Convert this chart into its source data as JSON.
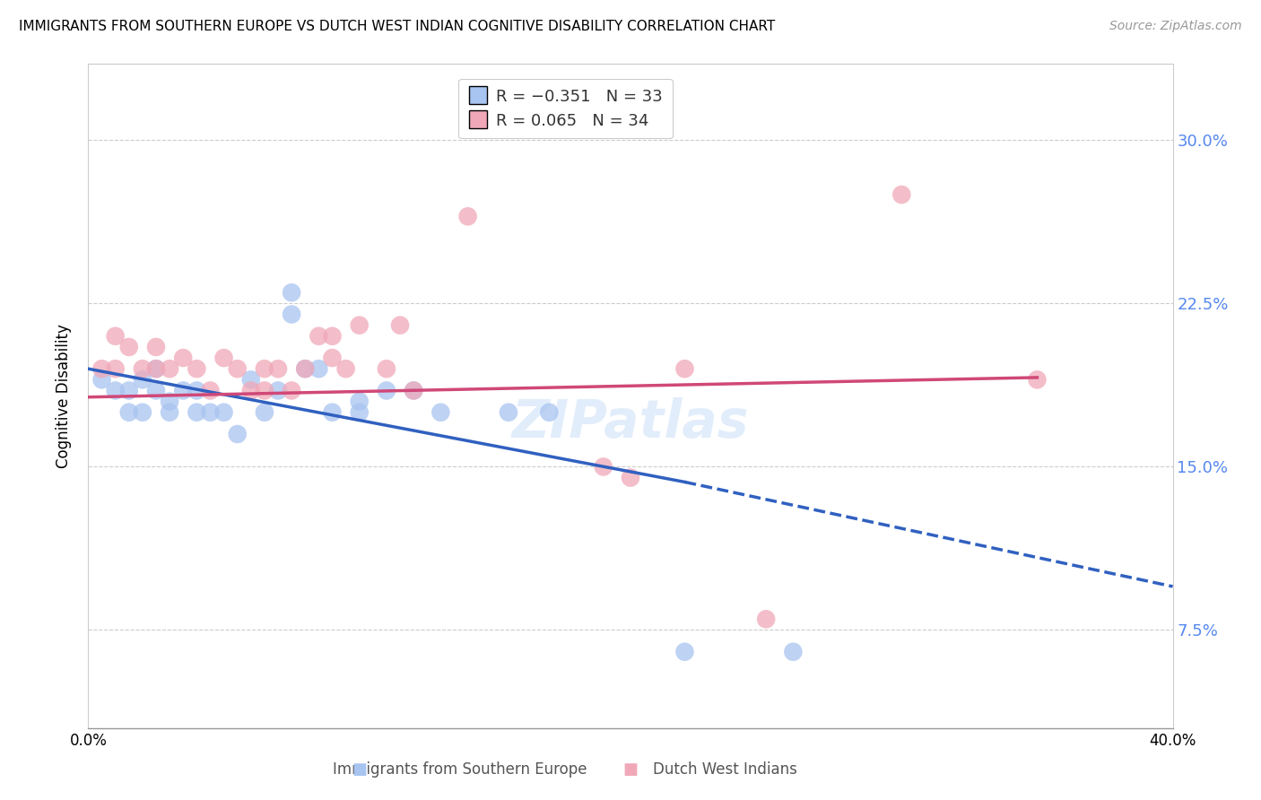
{
  "title": "IMMIGRANTS FROM SOUTHERN EUROPE VS DUTCH WEST INDIAN COGNITIVE DISABILITY CORRELATION CHART",
  "source": "Source: ZipAtlas.com",
  "ylabel": "Cognitive Disability",
  "y_tick_labels": [
    "7.5%",
    "15.0%",
    "22.5%",
    "30.0%"
  ],
  "y_tick_values": [
    0.075,
    0.15,
    0.225,
    0.3
  ],
  "x_lim": [
    0.0,
    0.4
  ],
  "y_lim": [
    0.03,
    0.335
  ],
  "blue_color": "#a8c4f0",
  "pink_color": "#f0a8b8",
  "blue_line_color": "#3060c0",
  "pink_line_color": "#d04878",
  "grid_color": "#cccccc",
  "axis_color": "#cccccc",
  "right_label_color": "#5588ee",
  "blue_scatter_x": [
    0.005,
    0.01,
    0.015,
    0.015,
    0.02,
    0.02,
    0.025,
    0.025,
    0.03,
    0.03,
    0.035,
    0.04,
    0.04,
    0.045,
    0.05,
    0.055,
    0.06,
    0.065,
    0.07,
    0.075,
    0.075,
    0.08,
    0.085,
    0.09,
    0.1,
    0.1,
    0.11,
    0.12,
    0.13,
    0.155,
    0.17,
    0.22,
    0.26
  ],
  "blue_scatter_y": [
    0.19,
    0.185,
    0.185,
    0.175,
    0.175,
    0.19,
    0.195,
    0.185,
    0.18,
    0.175,
    0.185,
    0.175,
    0.185,
    0.175,
    0.175,
    0.165,
    0.19,
    0.175,
    0.185,
    0.23,
    0.22,
    0.195,
    0.195,
    0.175,
    0.18,
    0.175,
    0.185,
    0.185,
    0.175,
    0.175,
    0.175,
    0.065,
    0.065
  ],
  "pink_scatter_x": [
    0.005,
    0.01,
    0.01,
    0.015,
    0.02,
    0.025,
    0.025,
    0.03,
    0.035,
    0.04,
    0.045,
    0.05,
    0.055,
    0.06,
    0.065,
    0.065,
    0.07,
    0.075,
    0.08,
    0.085,
    0.09,
    0.09,
    0.095,
    0.1,
    0.11,
    0.115,
    0.12,
    0.14,
    0.19,
    0.2,
    0.22,
    0.25,
    0.3,
    0.35
  ],
  "pink_scatter_y": [
    0.195,
    0.21,
    0.195,
    0.205,
    0.195,
    0.205,
    0.195,
    0.195,
    0.2,
    0.195,
    0.185,
    0.2,
    0.195,
    0.185,
    0.195,
    0.185,
    0.195,
    0.185,
    0.195,
    0.21,
    0.2,
    0.21,
    0.195,
    0.215,
    0.195,
    0.215,
    0.185,
    0.265,
    0.15,
    0.145,
    0.195,
    0.08,
    0.275,
    0.19
  ],
  "blue_line_x_start": 0.0,
  "blue_line_x_solid_end": 0.22,
  "blue_line_x_end": 0.4,
  "blue_line_y_start": 0.195,
  "blue_line_y_solid_end": 0.143,
  "blue_line_y_end": 0.095,
  "pink_line_x_start": 0.0,
  "pink_line_x_end": 0.35,
  "pink_line_y_start": 0.182,
  "pink_line_y_end": 0.191,
  "watermark": "ZIPatlas",
  "figsize": [
    14.06,
    8.92
  ],
  "dpi": 100
}
